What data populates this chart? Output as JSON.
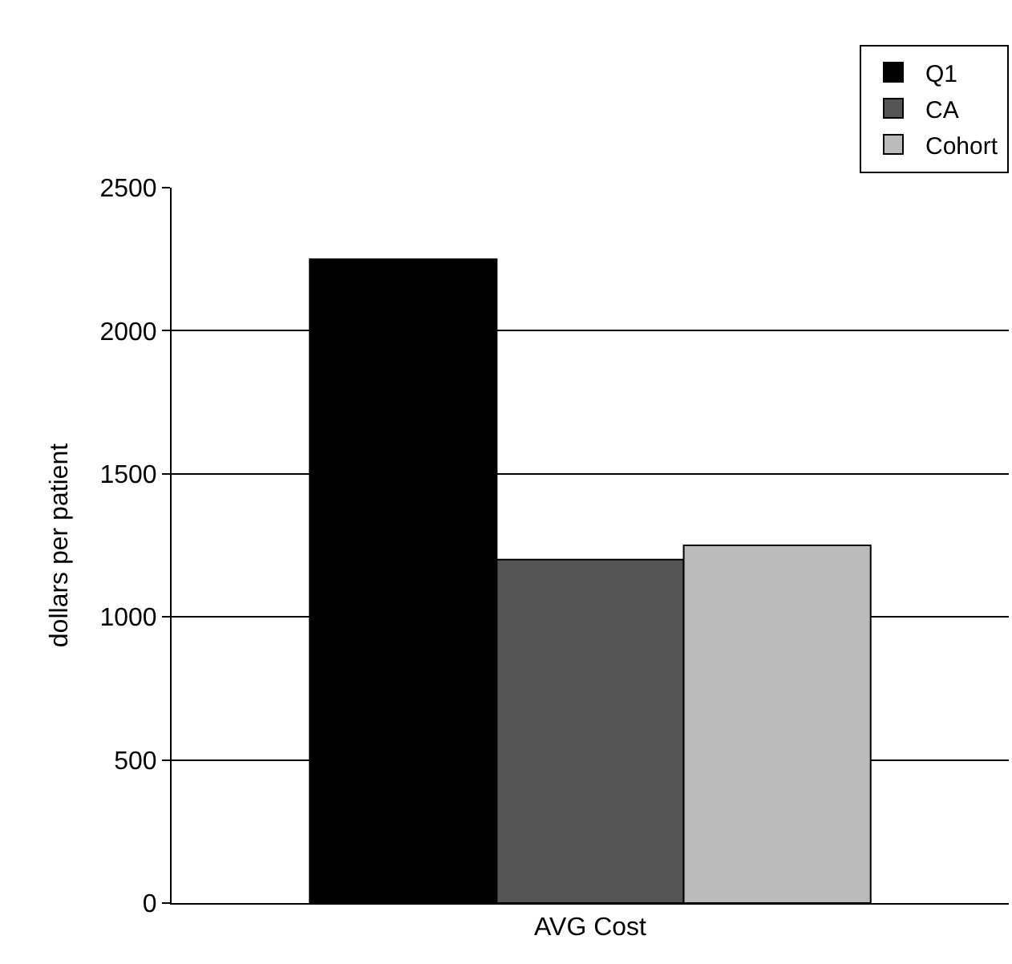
{
  "chart_data": {
    "type": "bar",
    "ylabel": "dollars per patient",
    "categories": [
      "AVG Cost"
    ],
    "series": [
      {
        "name": "Q1",
        "color": "#000000",
        "values": [
          2250
        ]
      },
      {
        "name": "CA",
        "color": "#555555",
        "values": [
          1200
        ]
      },
      {
        "name": "Cohort",
        "color": "#bbbbbb",
        "values": [
          1250
        ]
      }
    ],
    "ylim": [
      0,
      2500
    ],
    "yticks": [
      0,
      500,
      1000,
      1500,
      2000,
      2500
    ],
    "grid": "y",
    "legend": "top right"
  }
}
